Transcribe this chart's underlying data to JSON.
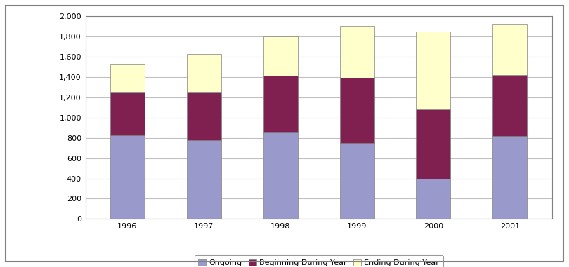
{
  "years": [
    "1996",
    "1997",
    "1998",
    "1999",
    "2000",
    "2001"
  ],
  "ongoing": [
    825,
    775,
    850,
    750,
    400,
    820
  ],
  "beginning": [
    425,
    475,
    560,
    640,
    680,
    600
  ],
  "ending": [
    275,
    375,
    390,
    510,
    770,
    500
  ],
  "color_ongoing": "#9999cc",
  "color_beginning": "#7f2050",
  "color_ending": "#ffffcc",
  "ylim": [
    0,
    2000
  ],
  "yticks": [
    0,
    200,
    400,
    600,
    800,
    1000,
    1200,
    1400,
    1600,
    1800,
    2000
  ],
  "ytick_labels": [
    "0",
    "200",
    "400",
    "600",
    "800",
    "1,000",
    "1,200",
    "1,400",
    "1,600",
    "1,800",
    "2,000"
  ],
  "legend_labels": [
    "Ongoing",
    "Beginning During Year",
    "Ending During Year"
  ],
  "background_color": "#ffffff",
  "plot_bg_color": "#ffffff",
  "grid_color": "#c0c0c0",
  "border_color": "#808080",
  "bar_edge_color": "#808080"
}
